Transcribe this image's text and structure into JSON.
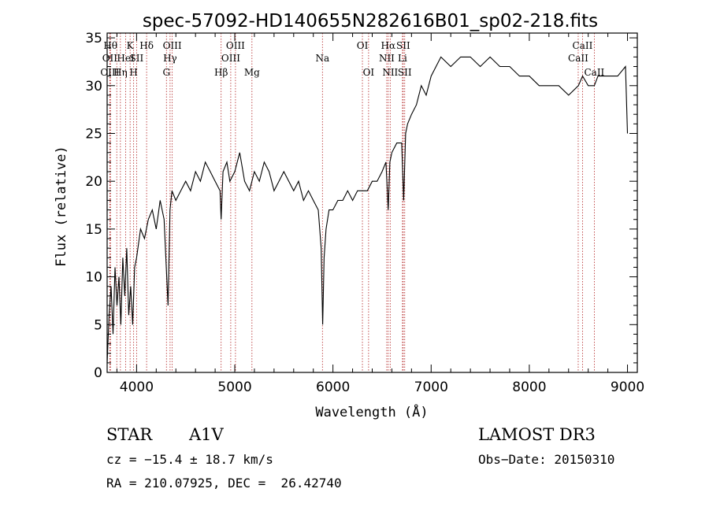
{
  "chart_data": {
    "type": "line",
    "title": "spec-57092-HD140655N282616B01_sp02-218.fits",
    "xlabel": "Wavelength (Å)",
    "ylabel": "Flux (relative)",
    "xlim": [
      3700,
      9100
    ],
    "ylim": [
      0,
      35.5
    ],
    "xticks": [
      4000,
      5000,
      6000,
      7000,
      8000,
      9000
    ],
    "yticks": [
      0,
      5,
      10,
      15,
      20,
      25,
      30,
      35
    ],
    "grid": false,
    "line_color": "#000000",
    "marker_color": "#b22222",
    "series": [
      {
        "x": [
          3700,
          3720,
          3740,
          3760,
          3780,
          3800,
          3820,
          3840,
          3860,
          3880,
          3900,
          3920,
          3940,
          3960,
          3980,
          4000,
          4040,
          4080,
          4120,
          4160,
          4200,
          4240,
          4280,
          4320,
          4340,
          4360,
          4400,
          4450,
          4500,
          4550,
          4600,
          4650,
          4700,
          4750,
          4800,
          4850,
          4861,
          4880,
          4920,
          4950,
          5000,
          5050,
          5100,
          5150,
          5200,
          5250,
          5300,
          5350,
          5400,
          5450,
          5500,
          5550,
          5600,
          5650,
          5700,
          5750,
          5800,
          5850,
          5880,
          5895,
          5910,
          5930,
          5960,
          6000,
          6050,
          6100,
          6150,
          6200,
          6250,
          6300,
          6350,
          6400,
          6450,
          6500,
          6540,
          6563,
          6580,
          6600,
          6650,
          6700,
          6720,
          6740,
          6760,
          6800,
          6850,
          6900,
          6950,
          7000,
          7050,
          7100,
          7200,
          7300,
          7400,
          7500,
          7600,
          7700,
          7800,
          7900,
          8000,
          8100,
          8200,
          8300,
          8400,
          8500,
          8542,
          8600,
          8662,
          8700,
          8800,
          8900,
          8980,
          9000
        ],
        "y": [
          1,
          6,
          9,
          4,
          11,
          7,
          10,
          5,
          12,
          8,
          13,
          6,
          9,
          5,
          11,
          12,
          15,
          14,
          16,
          17,
          15,
          18,
          16,
          7,
          17,
          19,
          18,
          19,
          20,
          19,
          21,
          20,
          22,
          21,
          20,
          19,
          16,
          21,
          22,
          20,
          21,
          23,
          20,
          19,
          21,
          20,
          22,
          21,
          19,
          20,
          21,
          20,
          19,
          20,
          18,
          19,
          18,
          17,
          13,
          5,
          12,
          15,
          17,
          17,
          18,
          18,
          19,
          18,
          19,
          19,
          19,
          20,
          20,
          21,
          22,
          17,
          22,
          23,
          24,
          24,
          18,
          25,
          26,
          27,
          28,
          30,
          29,
          31,
          32,
          33,
          32,
          33,
          33,
          32,
          33,
          32,
          32,
          31,
          31,
          30,
          30,
          30,
          29,
          30,
          31,
          30,
          30,
          31,
          31,
          31,
          32,
          25
        ]
      }
    ],
    "spectral_lines": [
      {
        "wave": 3734,
        "label": "Hθ",
        "row": 1
      },
      {
        "wave": 3727,
        "label": "OII",
        "row": 2
      },
      {
        "wave": 3727,
        "label": "OIII",
        "row": 3
      },
      {
        "wave": 3798,
        "label": "",
        "row": 0
      },
      {
        "wave": 3835,
        "label": "Hη",
        "row": 3
      },
      {
        "wave": 3889,
        "label": "HeI",
        "row": 2
      },
      {
        "wave": 3934,
        "label": "K",
        "row": 1
      },
      {
        "wave": 3970,
        "label": "H",
        "row": 3
      },
      {
        "wave": 4000,
        "label": "SII",
        "row": 2
      },
      {
        "wave": 4102,
        "label": "Hδ",
        "row": 1
      },
      {
        "wave": 4304,
        "label": "G",
        "row": 3
      },
      {
        "wave": 4341,
        "label": "Hγ",
        "row": 2
      },
      {
        "wave": 4363,
        "label": "OIII",
        "row": 1
      },
      {
        "wave": 4861,
        "label": "Hβ",
        "row": 3
      },
      {
        "wave": 4959,
        "label": "OIII",
        "row": 2
      },
      {
        "wave": 5007,
        "label": "OIII",
        "row": 1
      },
      {
        "wave": 5175,
        "label": "Mg",
        "row": 3
      },
      {
        "wave": 5893,
        "label": "Na",
        "row": 2
      },
      {
        "wave": 6300,
        "label": "OI",
        "row": 1
      },
      {
        "wave": 6363,
        "label": "OI",
        "row": 3
      },
      {
        "wave": 6548,
        "label": "NII",
        "row": 2
      },
      {
        "wave": 6563,
        "label": "Hα",
        "row": 1
      },
      {
        "wave": 6583,
        "label": "NII",
        "row": 3
      },
      {
        "wave": 6708,
        "label": "Li",
        "row": 2
      },
      {
        "wave": 6716,
        "label": "SII",
        "row": 1
      },
      {
        "wave": 6731,
        "label": "SII",
        "row": 3
      },
      {
        "wave": 8498,
        "label": "CaII",
        "row": 2
      },
      {
        "wave": 8542,
        "label": "CaII",
        "row": 1
      },
      {
        "wave": 8662,
        "label": "CaII",
        "row": 3
      }
    ]
  },
  "info": {
    "object_class": "STAR",
    "subclass": "A1V",
    "survey": "LAMOST DR3",
    "redshift": "cz = −15.4 ± 18.7 km/s",
    "obs_date": "Obs−Date: 20150310",
    "coords": "RA = 210.07925, DEC =  26.42740"
  }
}
